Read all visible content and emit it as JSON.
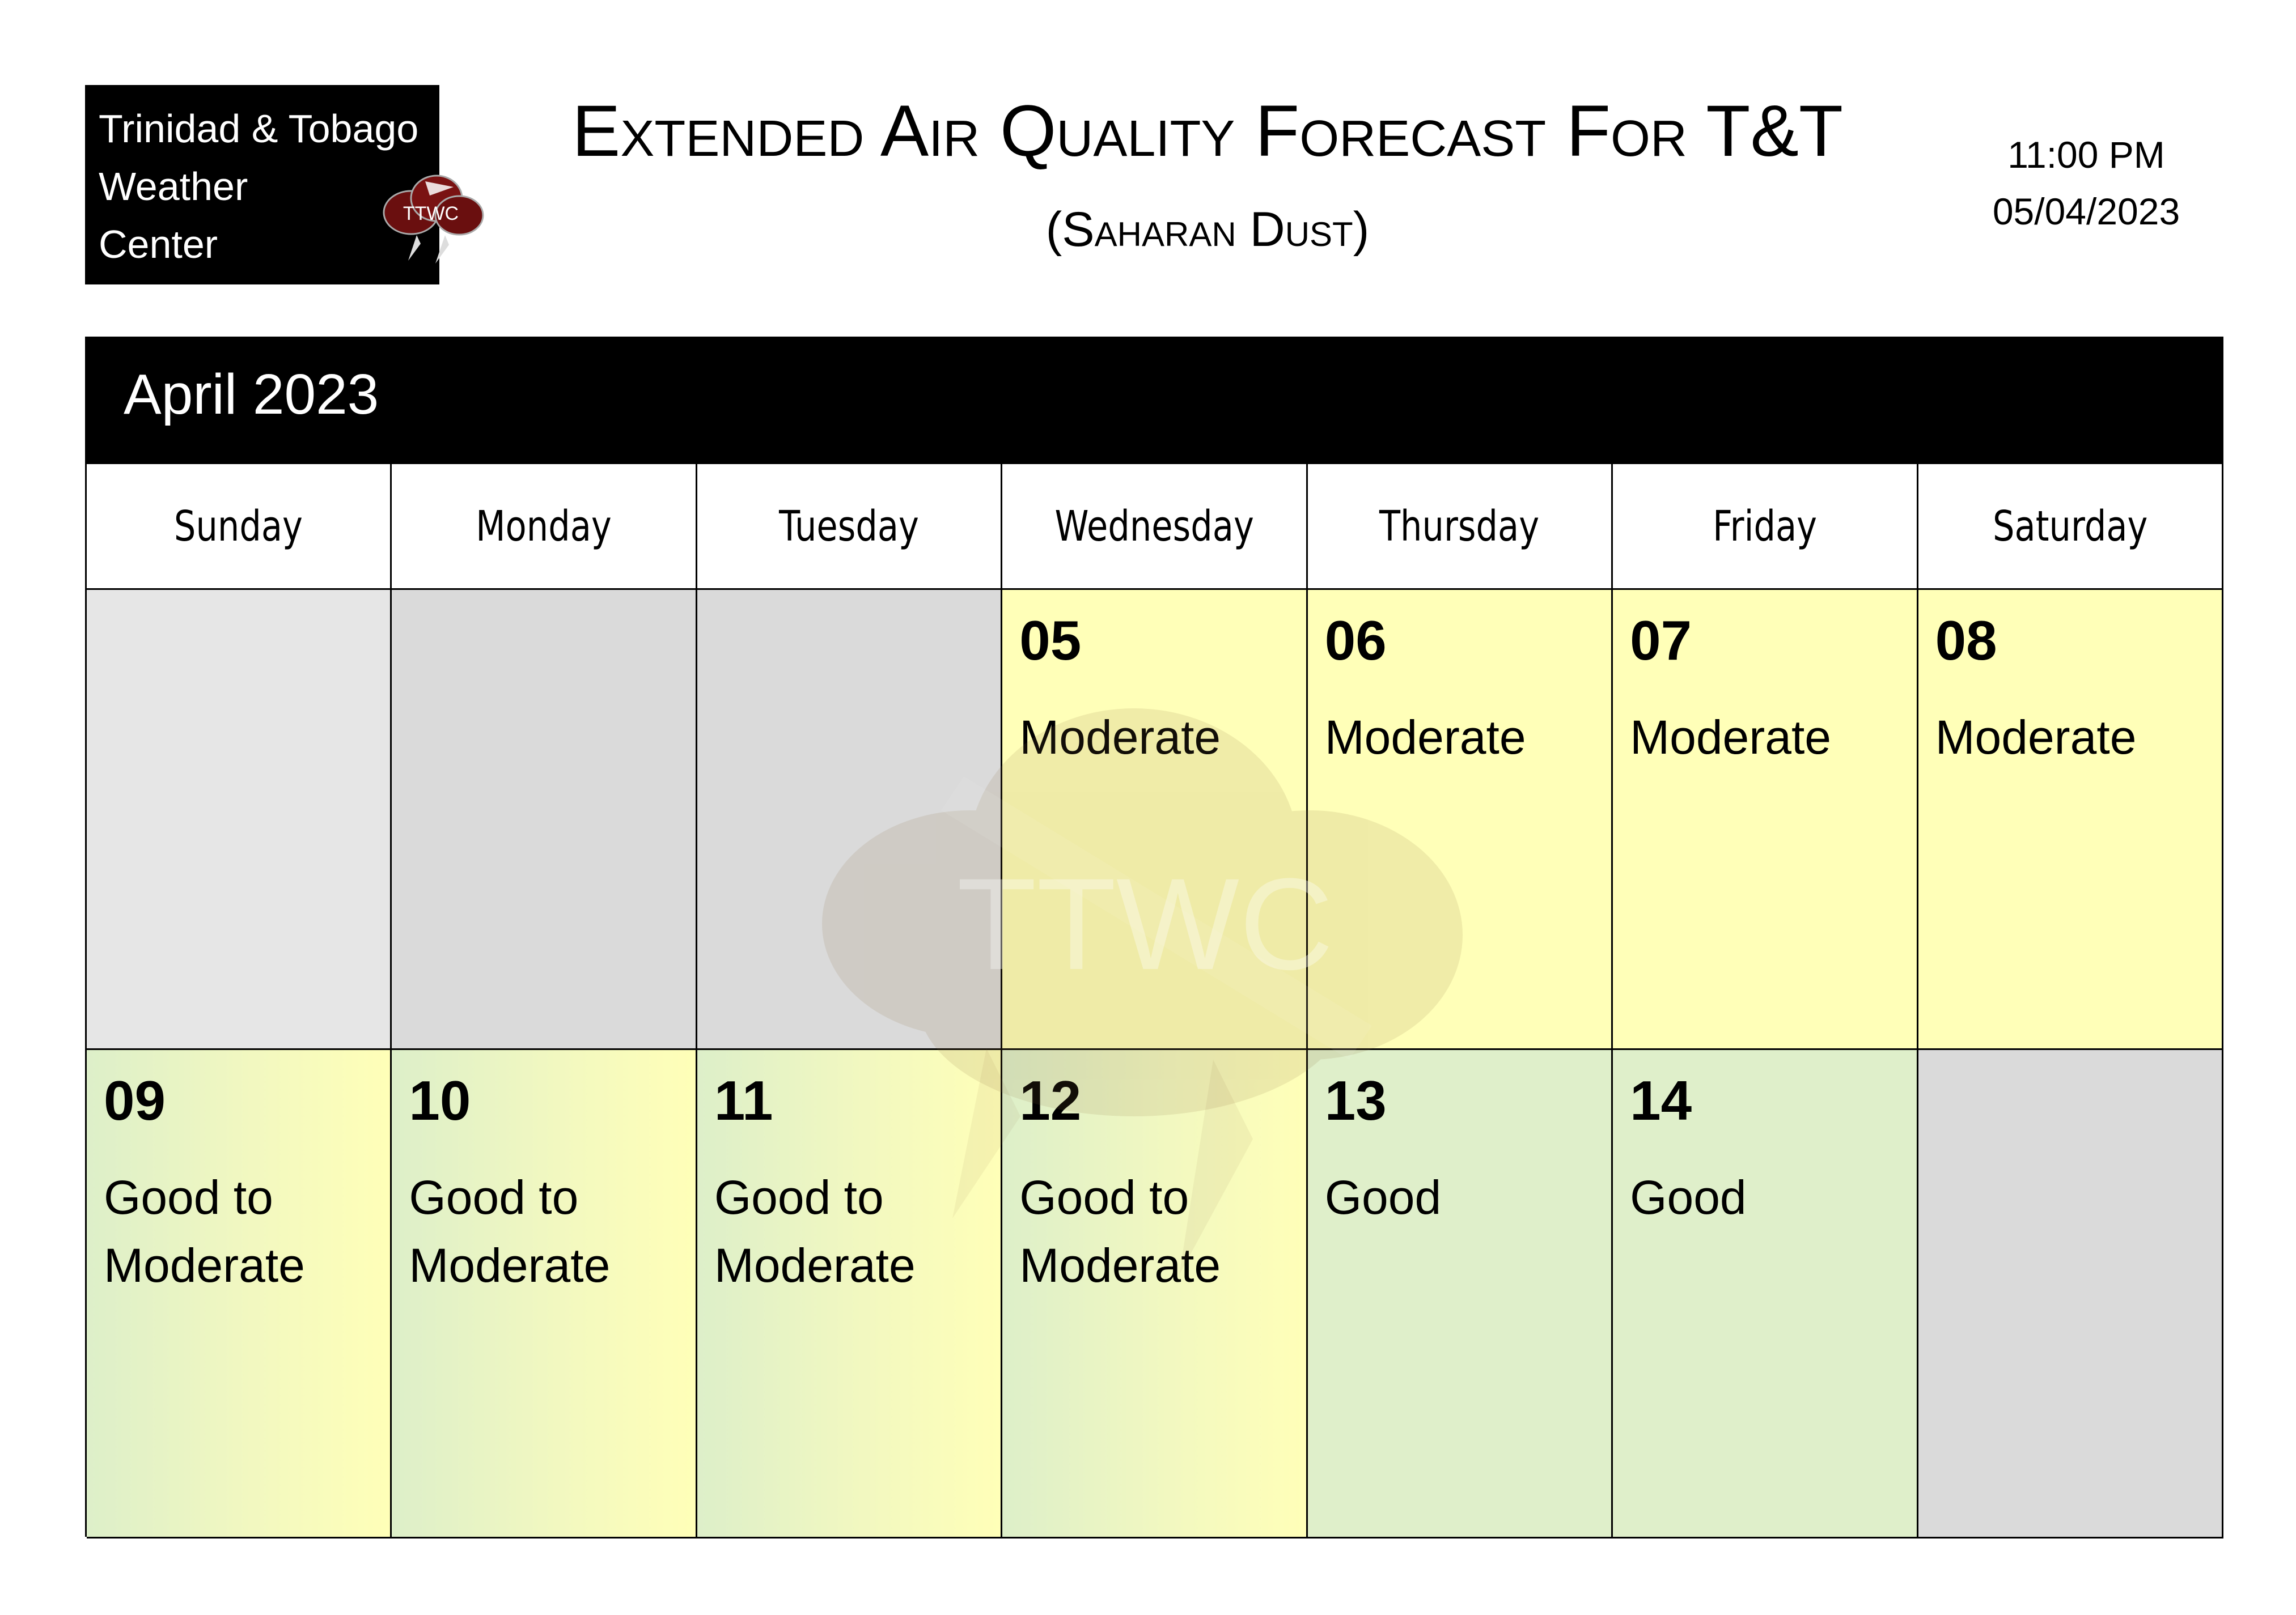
{
  "logo": {
    "line1": "Trinidad & Tobago",
    "line2": "Weather",
    "line3": "Center",
    "badge": "TTWC",
    "icon": "storm-cloud-icon"
  },
  "header": {
    "title": "Extended Air Quality Forecast For T&T",
    "subtitle": "(Saharan Dust)",
    "time": "11:00 PM",
    "date": "05/04/2023"
  },
  "calendar": {
    "month": "April 2023",
    "days": [
      "Sunday",
      "Monday",
      "Tuesday",
      "Wednesday",
      "Thursday",
      "Friday",
      "Saturday"
    ],
    "week1": [
      {
        "day": "",
        "level": ""
      },
      {
        "day": "",
        "level": ""
      },
      {
        "day": "",
        "level": ""
      },
      {
        "day": "05",
        "level": "Moderate"
      },
      {
        "day": "06",
        "level": "Moderate"
      },
      {
        "day": "07",
        "level": "Moderate"
      },
      {
        "day": "08",
        "level": "Moderate"
      }
    ],
    "week2": [
      {
        "day": "09",
        "level": "Good to Moderate"
      },
      {
        "day": "10",
        "level": "Good to Moderate"
      },
      {
        "day": "11",
        "level": "Good to Moderate"
      },
      {
        "day": "12",
        "level": "Good to Moderate"
      },
      {
        "day": "13",
        "level": "Good"
      },
      {
        "day": "14",
        "level": "Good"
      },
      {
        "day": "",
        "level": ""
      }
    ],
    "watermark": "TTWC"
  },
  "colors": {
    "moderate": "#ffffb8",
    "good": "#dfefca",
    "empty": "#dadada"
  }
}
